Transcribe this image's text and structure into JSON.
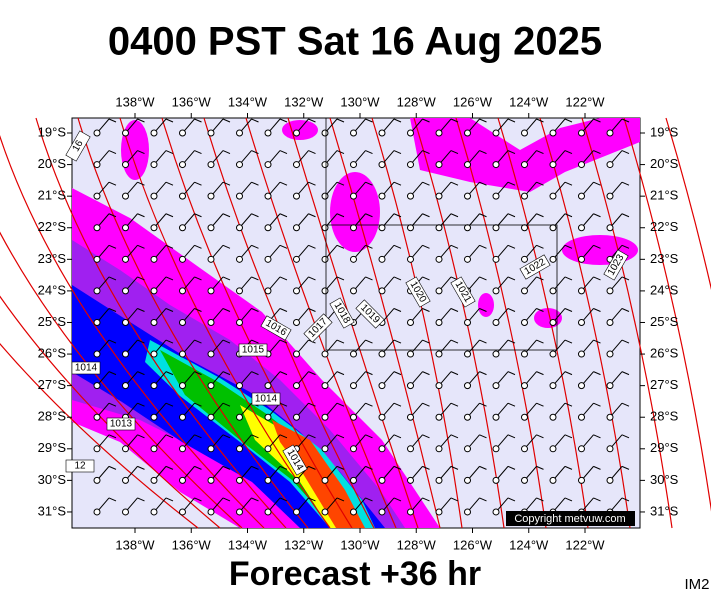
{
  "title": "0400 PST Sat 16 Aug 2025",
  "footer": "Forecast +36 hr",
  "corner_label": "IM2",
  "copyright": "Copyright metvuw.com",
  "longitude_labels": [
    "138°W",
    "136°W",
    "134°W",
    "132°W",
    "130°W",
    "128°W",
    "126°W",
    "124°W",
    "122°W"
  ],
  "latitude_labels": [
    "19°S",
    "20°S",
    "21°S",
    "22°S",
    "23°S",
    "24°S",
    "25°S",
    "26°S",
    "27°S",
    "28°S",
    "29°S",
    "30°S",
    "31°S"
  ],
  "isobar_labels": [
    "16",
    "1014",
    "1013",
    "12",
    "1015",
    "1016",
    "1014",
    "1014",
    "1017",
    "1018",
    "1019",
    "1020",
    "1021",
    "1022",
    "1023"
  ]
}
